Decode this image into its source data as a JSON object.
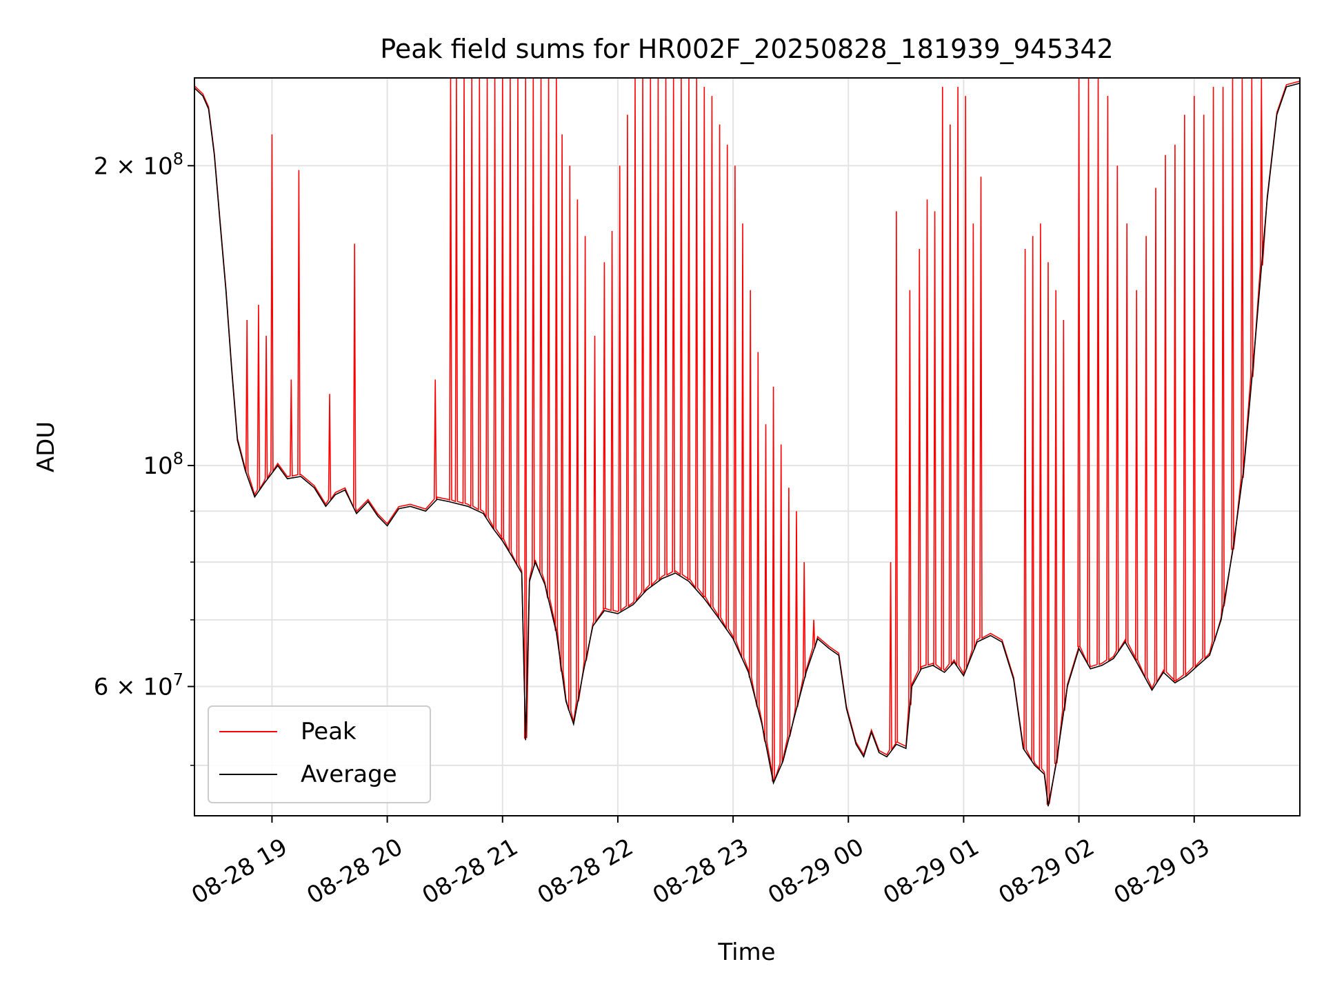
{
  "chart_data": {
    "type": "line",
    "title": "Peak field sums for HR002F_20250828_181939_945342",
    "xlabel": "Time",
    "ylabel": "ADU",
    "yscale": "log",
    "ylim": [
      44500000,
      245000000
    ],
    "xlim": [
      "2025-08-28 18:19:39",
      "2025-08-29 03:55:00"
    ],
    "grid": true,
    "legend": {
      "placement": "lower-left"
    },
    "x_ticks": [
      "08-28 19",
      "08-28 20",
      "08-28 21",
      "08-28 22",
      "08-28 23",
      "08-29 00",
      "08-29 01",
      "08-29 02",
      "08-29 03"
    ],
    "x_tick_times": [
      "2025-08-28 19:00",
      "2025-08-28 20:00",
      "2025-08-28 21:00",
      "2025-08-28 22:00",
      "2025-08-28 23:00",
      "2025-08-29 00:00",
      "2025-08-29 01:00",
      "2025-08-29 02:00",
      "2025-08-29 03:00"
    ],
    "y_major_ticks": [
      {
        "value": 60000000,
        "base": "6 × 10",
        "exp": "7"
      },
      {
        "value": 100000000,
        "base": "10",
        "exp": "8"
      },
      {
        "value": 200000000,
        "base": "2 × 10",
        "exp": "8"
      }
    ],
    "y_minor_ticks": [
      50000000,
      70000000,
      80000000,
      90000000
    ],
    "series": [
      {
        "name": "Average",
        "color": "#000000",
        "points": [
          [
            "2025-08-28 18:19",
            240000000
          ],
          [
            "2025-08-28 18:24",
            235000000
          ],
          [
            "2025-08-28 18:27",
            228000000
          ],
          [
            "2025-08-28 18:30",
            205000000
          ],
          [
            "2025-08-28 18:33",
            175000000
          ],
          [
            "2025-08-28 18:36",
            150000000
          ],
          [
            "2025-08-28 18:39",
            125000000
          ],
          [
            "2025-08-28 18:42",
            106000000
          ],
          [
            "2025-08-28 18:46",
            99000000
          ],
          [
            "2025-08-28 18:51",
            93000000
          ],
          [
            "2025-08-28 18:56",
            96000000
          ],
          [
            "2025-08-28 19:03",
            100000000
          ],
          [
            "2025-08-28 19:08",
            97000000
          ],
          [
            "2025-08-28 19:15",
            97500000
          ],
          [
            "2025-08-28 19:22",
            95000000
          ],
          [
            "2025-08-28 19:28",
            91000000
          ],
          [
            "2025-08-28 19:33",
            93500000
          ],
          [
            "2025-08-28 19:38",
            94500000
          ],
          [
            "2025-08-28 19:44",
            89500000
          ],
          [
            "2025-08-28 19:50",
            92000000
          ],
          [
            "2025-08-28 19:55",
            89000000
          ],
          [
            "2025-08-28 20:00",
            87000000
          ],
          [
            "2025-08-28 20:06",
            90500000
          ],
          [
            "2025-08-28 20:12",
            91000000
          ],
          [
            "2025-08-28 20:20",
            90000000
          ],
          [
            "2025-08-28 20:26",
            92500000
          ],
          [
            "2025-08-28 20:32",
            92000000
          ],
          [
            "2025-08-28 20:42",
            91000000
          ],
          [
            "2025-08-28 20:50",
            89500000
          ],
          [
            "2025-08-28 20:55",
            86500000
          ],
          [
            "2025-08-28 21:00",
            84000000
          ],
          [
            "2025-08-28 21:05",
            81000000
          ],
          [
            "2025-08-28 21:10",
            78000000
          ],
          [
            "2025-08-28 21:12",
            53000000
          ],
          [
            "2025-08-28 21:14",
            76500000
          ],
          [
            "2025-08-28 21:17",
            80000000
          ],
          [
            "2025-08-28 21:22",
            76000000
          ],
          [
            "2025-08-28 21:28",
            68000000
          ],
          [
            "2025-08-28 21:33",
            58000000
          ],
          [
            "2025-08-28 21:37",
            55000000
          ],
          [
            "2025-08-28 21:42",
            62000000
          ],
          [
            "2025-08-28 21:47",
            69000000
          ],
          [
            "2025-08-28 21:53",
            71500000
          ],
          [
            "2025-08-28 22:00",
            71000000
          ],
          [
            "2025-08-28 22:08",
            72500000
          ],
          [
            "2025-08-28 22:15",
            75000000
          ],
          [
            "2025-08-28 22:23",
            77000000
          ],
          [
            "2025-08-28 22:30",
            78000000
          ],
          [
            "2025-08-28 22:37",
            76500000
          ],
          [
            "2025-08-28 22:45",
            73500000
          ],
          [
            "2025-08-28 22:52",
            70500000
          ],
          [
            "2025-08-28 23:00",
            67000000
          ],
          [
            "2025-08-28 23:08",
            62000000
          ],
          [
            "2025-08-28 23:15",
            55000000
          ],
          [
            "2025-08-28 23:21",
            48000000
          ],
          [
            "2025-08-28 23:26",
            50500000
          ],
          [
            "2025-08-28 23:32",
            56000000
          ],
          [
            "2025-08-28 23:38",
            62000000
          ],
          [
            "2025-08-28 23:44",
            67000000
          ],
          [
            "2025-08-28 23:50",
            65500000
          ],
          [
            "2025-08-28 23:55",
            64500000
          ],
          [
            "2025-08-28 23:59",
            57000000
          ],
          [
            "2025-08-29 00:04",
            52500000
          ],
          [
            "2025-08-29 00:08",
            51000000
          ],
          [
            "2025-08-29 00:12",
            54000000
          ],
          [
            "2025-08-29 00:16",
            51500000
          ],
          [
            "2025-08-29 00:20",
            51000000
          ],
          [
            "2025-08-29 00:25",
            52500000
          ],
          [
            "2025-08-29 00:30",
            52000000
          ],
          [
            "2025-08-29 00:33",
            60000000
          ],
          [
            "2025-08-29 00:38",
            62500000
          ],
          [
            "2025-08-29 00:44",
            63000000
          ],
          [
            "2025-08-29 00:50",
            62000000
          ],
          [
            "2025-08-29 00:55",
            63500000
          ],
          [
            "2025-08-29 01:00",
            61500000
          ],
          [
            "2025-08-29 01:07",
            66500000
          ],
          [
            "2025-08-29 01:14",
            67500000
          ],
          [
            "2025-08-29 01:20",
            66500000
          ],
          [
            "2025-08-29 01:26",
            61000000
          ],
          [
            "2025-08-29 01:31",
            52000000
          ],
          [
            "2025-08-29 01:37",
            50000000
          ],
          [
            "2025-08-29 01:42",
            49000000
          ],
          [
            "2025-08-29 01:44",
            45500000
          ],
          [
            "2025-08-29 01:48",
            50000000
          ],
          [
            "2025-08-29 01:54",
            60000000
          ],
          [
            "2025-08-29 02:00",
            65500000
          ],
          [
            "2025-08-29 02:06",
            62500000
          ],
          [
            "2025-08-29 02:12",
            63000000
          ],
          [
            "2025-08-29 02:18",
            64000000
          ],
          [
            "2025-08-29 02:24",
            66500000
          ],
          [
            "2025-08-29 02:30",
            63500000
          ],
          [
            "2025-08-29 02:38",
            59500000
          ],
          [
            "2025-08-29 02:44",
            62000000
          ],
          [
            "2025-08-29 02:50",
            60500000
          ],
          [
            "2025-08-29 02:56",
            61500000
          ],
          [
            "2025-08-29 03:02",
            63000000
          ],
          [
            "2025-08-29 03:08",
            64500000
          ],
          [
            "2025-08-29 03:14",
            70000000
          ],
          [
            "2025-08-29 03:20",
            82000000
          ],
          [
            "2025-08-29 03:26",
            100000000
          ],
          [
            "2025-08-29 03:32",
            135000000
          ],
          [
            "2025-08-29 03:38",
            185000000
          ],
          [
            "2025-08-29 03:43",
            225000000
          ],
          [
            "2025-08-29 03:48",
            240000000
          ],
          [
            "2025-08-29 03:55",
            242000000
          ]
        ]
      },
      {
        "name": "Peak",
        "color": "#ff0000",
        "spikes": [
          [
            "2025-08-28 18:47",
            140000000
          ],
          [
            "2025-08-28 18:53",
            145000000
          ],
          [
            "2025-08-28 18:57",
            135000000
          ],
          [
            "2025-08-28 19:00",
            215000000
          ],
          [
            "2025-08-28 19:10",
            122000000
          ],
          [
            "2025-08-28 19:14",
            198000000
          ],
          [
            "2025-08-28 19:30",
            118000000
          ],
          [
            "2025-08-28 19:43",
            167000000
          ],
          [
            "2025-08-28 20:25",
            122000000
          ],
          [
            "2025-08-28 20:33",
            245000000
          ],
          [
            "2025-08-28 20:36",
            245000000
          ],
          [
            "2025-08-28 20:40",
            245000000
          ],
          [
            "2025-08-28 20:44",
            245000000
          ],
          [
            "2025-08-28 20:48",
            245000000
          ],
          [
            "2025-08-28 20:52",
            245000000
          ],
          [
            "2025-08-28 20:56",
            245000000
          ],
          [
            "2025-08-28 21:00",
            245000000
          ],
          [
            "2025-08-28 21:04",
            245000000
          ],
          [
            "2025-08-28 21:08",
            245000000
          ],
          [
            "2025-08-28 21:12",
            245000000
          ],
          [
            "2025-08-28 21:16",
            245000000
          ],
          [
            "2025-08-28 21:20",
            245000000
          ],
          [
            "2025-08-28 21:24",
            245000000
          ],
          [
            "2025-08-28 21:28",
            245000000
          ],
          [
            "2025-08-28 21:31",
            215000000
          ],
          [
            "2025-08-28 21:35",
            200000000
          ],
          [
            "2025-08-28 21:39",
            185000000
          ],
          [
            "2025-08-28 21:43",
            170000000
          ],
          [
            "2025-08-28 21:48",
            135000000
          ],
          [
            "2025-08-28 21:53",
            160000000
          ],
          [
            "2025-08-28 21:57",
            172000000
          ],
          [
            "2025-08-28 22:01",
            200000000
          ],
          [
            "2025-08-28 22:05",
            225000000
          ],
          [
            "2025-08-28 22:09",
            245000000
          ],
          [
            "2025-08-28 22:13",
            245000000
          ],
          [
            "2025-08-28 22:17",
            245000000
          ],
          [
            "2025-08-28 22:21",
            245000000
          ],
          [
            "2025-08-28 22:25",
            245000000
          ],
          [
            "2025-08-28 22:29",
            245000000
          ],
          [
            "2025-08-28 22:33",
            245000000
          ],
          [
            "2025-08-28 22:37",
            245000000
          ],
          [
            "2025-08-28 22:41",
            245000000
          ],
          [
            "2025-08-28 22:45",
            240000000
          ],
          [
            "2025-08-28 22:49",
            235000000
          ],
          [
            "2025-08-28 22:53",
            220000000
          ],
          [
            "2025-08-28 22:57",
            210000000
          ],
          [
            "2025-08-28 23:01",
            200000000
          ],
          [
            "2025-08-28 23:05",
            175000000
          ],
          [
            "2025-08-28 23:09",
            150000000
          ],
          [
            "2025-08-28 23:13",
            130000000
          ],
          [
            "2025-08-28 23:17",
            110000000
          ],
          [
            "2025-08-28 23:21",
            120000000
          ],
          [
            "2025-08-28 23:25",
            105000000
          ],
          [
            "2025-08-28 23:29",
            95000000
          ],
          [
            "2025-08-28 23:33",
            90000000
          ],
          [
            "2025-08-28 23:37",
            80000000
          ],
          [
            "2025-08-28 23:42",
            70000000
          ],
          [
            "2025-08-29 00:22",
            80000000
          ],
          [
            "2025-08-29 00:25",
            180000000
          ],
          [
            "2025-08-29 00:32",
            150000000
          ],
          [
            "2025-08-29 00:37",
            165000000
          ],
          [
            "2025-08-29 00:41",
            185000000
          ],
          [
            "2025-08-29 00:45",
            180000000
          ],
          [
            "2025-08-29 00:49",
            240000000
          ],
          [
            "2025-08-29 00:53",
            220000000
          ],
          [
            "2025-08-29 00:57",
            240000000
          ],
          [
            "2025-08-29 01:01",
            235000000
          ],
          [
            "2025-08-29 01:05",
            175000000
          ],
          [
            "2025-08-29 01:09",
            195000000
          ],
          [
            "2025-08-29 01:32",
            165000000
          ],
          [
            "2025-08-29 01:36",
            170000000
          ],
          [
            "2025-08-29 01:40",
            175000000
          ],
          [
            "2025-08-29 01:44",
            160000000
          ],
          [
            "2025-08-29 01:48",
            150000000
          ],
          [
            "2025-08-29 01:52",
            140000000
          ],
          [
            "2025-08-29 02:00",
            245000000
          ],
          [
            "2025-08-29 02:05",
            245000000
          ],
          [
            "2025-08-29 02:10",
            245000000
          ],
          [
            "2025-08-29 02:15",
            235000000
          ],
          [
            "2025-08-29 02:20",
            200000000
          ],
          [
            "2025-08-29 02:25",
            175000000
          ],
          [
            "2025-08-29 02:30",
            150000000
          ],
          [
            "2025-08-29 02:35",
            170000000
          ],
          [
            "2025-08-29 02:40",
            190000000
          ],
          [
            "2025-08-29 02:45",
            205000000
          ],
          [
            "2025-08-29 02:50",
            210000000
          ],
          [
            "2025-08-29 02:55",
            225000000
          ],
          [
            "2025-08-29 03:00",
            235000000
          ],
          [
            "2025-08-29 03:05",
            225000000
          ],
          [
            "2025-08-29 03:10",
            240000000
          ],
          [
            "2025-08-29 03:15",
            240000000
          ],
          [
            "2025-08-29 03:20",
            245000000
          ],
          [
            "2025-08-29 03:25",
            245000000
          ],
          [
            "2025-08-29 03:30",
            245000000
          ],
          [
            "2025-08-29 03:35",
            245000000
          ]
        ]
      }
    ],
    "legend_entries": [
      "Peak",
      "Average"
    ]
  }
}
